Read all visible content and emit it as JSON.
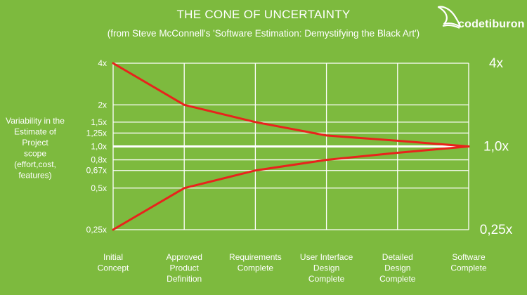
{
  "header": {
    "title": "THE CONE OF UNCERTAINTY",
    "subtitle": "(from Steve McConnell's 'Software Estimation: Demystifying the Black Art')"
  },
  "brand": {
    "name": "codetiburon",
    "icon": "shark-fin-icon"
  },
  "colors": {
    "background": "#7dba3e",
    "grid": "#ffffff",
    "line": "#e8231c",
    "text": "#ffffff"
  },
  "chart_data": {
    "type": "line",
    "title": "THE CONE OF UNCERTAINTY",
    "subtitle": "(from Steve McConnell's 'Software Estimation: Demystifying the Black Art')",
    "ylabel": [
      "Variability in the",
      "Estimate of",
      "Project",
      "scope",
      "(effort,cost,",
      "features)"
    ],
    "y_scale": "log",
    "ylim": [
      0.25,
      4
    ],
    "y_ticks": [
      {
        "value": 4,
        "label": "4x"
      },
      {
        "value": 2,
        "label": "2x"
      },
      {
        "value": 1.5,
        "label": "1,5x"
      },
      {
        "value": 1.25,
        "label": "1,25x"
      },
      {
        "value": 1.0,
        "label": "1,0x"
      },
      {
        "value": 0.8,
        "label": "0,8x"
      },
      {
        "value": 0.67,
        "label": "0,67x"
      },
      {
        "value": 0.5,
        "label": "0,5x"
      },
      {
        "value": 0.25,
        "label": "0,25x"
      }
    ],
    "right_labels": [
      {
        "value": 4,
        "label": "4x"
      },
      {
        "value": 1.0,
        "label": "1,0x"
      },
      {
        "value": 0.25,
        "label": "0,25x"
      }
    ],
    "categories": [
      [
        "Initial",
        "Concept"
      ],
      [
        "Approved",
        "Product",
        "Definition"
      ],
      [
        "Requirements",
        "Complete"
      ],
      [
        "User Interface",
        "Design",
        "Complete"
      ],
      [
        "Detailed",
        "Design",
        "Complete"
      ],
      [
        "Software",
        "Complete"
      ]
    ],
    "series": [
      {
        "values": [
          4,
          2,
          1.5,
          1.2,
          1.1,
          1.0
        ]
      },
      {
        "values": [
          0.25,
          0.5,
          0.67,
          0.8,
          0.9,
          1.0
        ]
      }
    ],
    "grid": true
  }
}
